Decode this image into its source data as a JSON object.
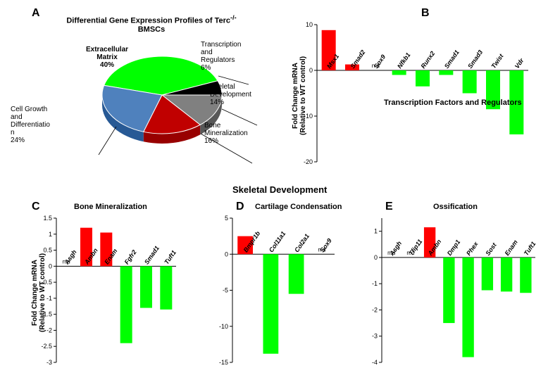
{
  "panelA": {
    "letter": "A",
    "title_line1": "Differential Gene Expression Profiles of Terc",
    "title_sup": "-/-",
    "title_line2": "BMSCs",
    "pie": {
      "slices": [
        {
          "label": "Extracellular Matrix",
          "value": 40,
          "color": "#00ff00"
        },
        {
          "label": "Transcription and Regulators",
          "value": 6,
          "color": "#000000"
        },
        {
          "label": "Skeletal Development",
          "value": 14,
          "color": "#808080"
        },
        {
          "label": "Bone Mineralization",
          "value": 16,
          "color": "#c00000"
        },
        {
          "label": "Cell Growth and Differentiation",
          "value": 24,
          "color": "#4f81bd"
        }
      ]
    },
    "labels": {
      "ecm": "Extracellular\nMatrix\n40%",
      "trans": "Transcription\nand\nRegulators\n6%",
      "skel": "Skeletal\nDevelopment\n14%",
      "bone": "Bone\nMineralization\n16%",
      "cell": "Cell Growth\nand\nDifferentiatio\nn\n24%"
    }
  },
  "panelB": {
    "letter": "B",
    "x_axis_title": "Transcription Factors and Regulators",
    "y_label": "Fold Change mRNA\n(Relative to WT control)",
    "ylim": [
      -20,
      10
    ],
    "ytick_step": 10,
    "categories": [
      "Msx1",
      "Smad2",
      "Sox9",
      "Nfkb1",
      "Runx2",
      "Smad1",
      "Smad3",
      "Twist",
      "Vdr"
    ],
    "values": [
      8.8,
      1.3,
      null,
      -1.0,
      -3.5,
      -1.0,
      -5.0,
      -8.5,
      -14.0
    ],
    "nd_indices": [
      2
    ],
    "colors_pos": "#ff0000",
    "colors_neg": "#00ff00",
    "nd_label": "n.d"
  },
  "skeletal_title": "Skeletal Development",
  "panelC": {
    "letter": "C",
    "title": "Bone Mineralization",
    "y_label": "Fold Change mRNA\n(Relative to WT control)",
    "ylim": [
      -3,
      1.5
    ],
    "ytick_step": 0.5,
    "categories": [
      "Asgh",
      "Ambn",
      "Enam",
      "Fgfr2",
      "Smad1",
      "Tuft1"
    ],
    "values": [
      null,
      1.2,
      1.05,
      -2.4,
      -1.3,
      -1.35
    ],
    "nd_indices": [
      0
    ],
    "colors_pos": "#ff0000",
    "colors_neg": "#00ff00",
    "nd_label": "n.d"
  },
  "panelD": {
    "letter": "D",
    "title": "Cartilage Condensation",
    "ylim": [
      -15,
      5
    ],
    "ytick_step": 5,
    "categories": [
      "Bmpr1b",
      "Col11a1",
      "Col2a1",
      "Sox9"
    ],
    "values": [
      2.5,
      -13.8,
      -5.5,
      null
    ],
    "nd_indices": [
      3
    ],
    "colors_pos": "#ff0000",
    "colors_neg": "#00ff00",
    "nd_label": "n.d"
  },
  "panelE": {
    "letter": "E",
    "title": "Ossification",
    "ylim": [
      -4,
      1.5
    ],
    "ytick_step": 1,
    "ytick_start": -4,
    "categories": [
      "Asgh",
      "Tfip11",
      "Ambn",
      "Dmp1",
      "Phex",
      "Sost",
      "Enam",
      "Tuft1"
    ],
    "values": [
      null,
      null,
      1.15,
      -2.5,
      -3.8,
      -1.25,
      -1.3,
      -1.35
    ],
    "nd_indices": [
      0,
      1
    ],
    "colors_pos": "#ff0000",
    "colors_neg": "#00ff00",
    "nd_label": "n.d"
  }
}
